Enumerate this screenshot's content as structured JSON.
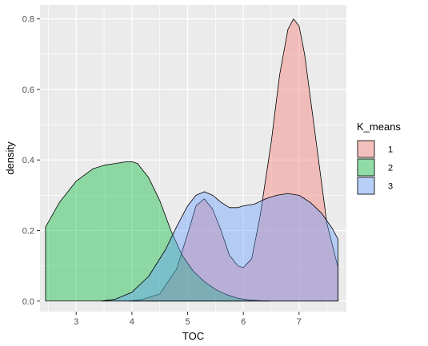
{
  "chart_data": {
    "type": "area",
    "xlabel": "TOC",
    "ylabel": "density",
    "xlim": [
      2.35,
      7.85
    ],
    "ylim": [
      -0.03,
      0.84
    ],
    "x_ticks": [
      3,
      4,
      5,
      6,
      7
    ],
    "x_tick_labels": [
      "3",
      "4",
      "5",
      "6",
      "7"
    ],
    "y_ticks": [
      0.0,
      0.2,
      0.4,
      0.6,
      0.8
    ],
    "y_tick_labels": [
      "0.0",
      "0.2",
      "0.4",
      "0.6",
      "0.8"
    ],
    "grid": true,
    "legend": {
      "title": "K_means",
      "position": "right"
    },
    "panel_background": "#EBEBEB",
    "series": [
      {
        "name": "1",
        "color": "#F8766D",
        "x": [
          3.95,
          4.2,
          4.5,
          4.8,
          5.0,
          5.15,
          5.3,
          5.45,
          5.6,
          5.75,
          5.9,
          6.0,
          6.15,
          6.3,
          6.5,
          6.65,
          6.8,
          6.9,
          7.0,
          7.1,
          7.2,
          7.35,
          7.5,
          7.7
        ],
        "y": [
          0.0,
          0.005,
          0.02,
          0.09,
          0.19,
          0.27,
          0.29,
          0.26,
          0.2,
          0.13,
          0.1,
          0.095,
          0.12,
          0.24,
          0.45,
          0.64,
          0.77,
          0.8,
          0.78,
          0.7,
          0.58,
          0.4,
          0.22,
          0.095
        ]
      },
      {
        "name": "2",
        "color": "#00BA38",
        "x": [
          2.45,
          2.7,
          3.0,
          3.3,
          3.5,
          3.7,
          3.9,
          4.0,
          4.1,
          4.3,
          4.5,
          4.7,
          4.9,
          5.1,
          5.3,
          5.5,
          5.7,
          5.9,
          6.1,
          6.3,
          6.5
        ],
        "y": [
          0.21,
          0.28,
          0.34,
          0.375,
          0.385,
          0.39,
          0.395,
          0.395,
          0.39,
          0.35,
          0.285,
          0.2,
          0.13,
          0.085,
          0.055,
          0.033,
          0.018,
          0.008,
          0.003,
          0.001,
          0.0
        ]
      },
      {
        "name": "3",
        "color": "#619CFF",
        "x": [
          3.45,
          3.7,
          4.0,
          4.3,
          4.6,
          4.8,
          5.0,
          5.15,
          5.3,
          5.45,
          5.6,
          5.75,
          5.9,
          6.0,
          6.2,
          6.4,
          6.6,
          6.8,
          7.0,
          7.2,
          7.4,
          7.6,
          7.7
        ],
        "y": [
          0.0,
          0.005,
          0.025,
          0.07,
          0.145,
          0.21,
          0.27,
          0.3,
          0.31,
          0.3,
          0.28,
          0.265,
          0.265,
          0.27,
          0.275,
          0.29,
          0.3,
          0.305,
          0.3,
          0.28,
          0.25,
          0.205,
          0.175
        ]
      }
    ]
  }
}
